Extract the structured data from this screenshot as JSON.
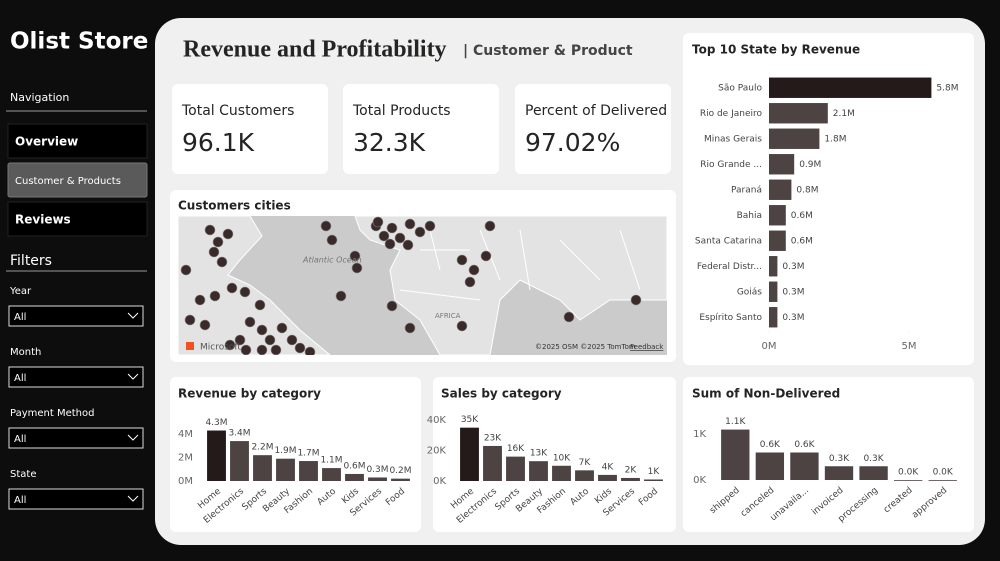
{
  "sidebar": {
    "title": "Olist Store",
    "navigation": "Navigation",
    "buttons": [
      "Overview",
      "Customer & Products",
      "Reviews"
    ],
    "filters_title": "Filters",
    "filters": [
      {
        "label": "Year",
        "value": "All"
      },
      {
        "label": "Month",
        "value": "All"
      },
      {
        "label": "Payment Method",
        "value": "All"
      },
      {
        "label": "State",
        "value": "All"
      }
    ]
  },
  "header": {
    "title": "Revenue and Profitability",
    "subtitle": "| Customer & Product"
  },
  "kpis": [
    {
      "label": "Total Customers",
      "value": "96.1K"
    },
    {
      "label": "Total Products",
      "value": "32.3K"
    },
    {
      "label": "Percent of Delivered",
      "value": "97.02%"
    }
  ],
  "map": {
    "title": "Customers cities",
    "ocean_label": "Atlantic Ocean",
    "continent_label": "AFRICA",
    "attribution": "©2025 OSM ©2025 TomTom",
    "feedback": "Feedback",
    "logo": "Microsoft"
  },
  "chart_data": [
    {
      "type": "barh",
      "title": "Top 10 State by Revenue",
      "categories": [
        "São Paulo",
        "Rio de Janeiro",
        "Minas Gerais",
        "Rio Grande ...",
        "Paraná",
        "Bahia",
        "Santa Catarina",
        "Federal Distr...",
        "Goiás",
        "Espírito Santo"
      ],
      "values": [
        5.8,
        2.1,
        1.8,
        0.9,
        0.8,
        0.6,
        0.6,
        0.3,
        0.3,
        0.3
      ],
      "value_labels": [
        "5.8M",
        "2.1M",
        "1.8M",
        "0.9M",
        "0.8M",
        "0.6M",
        "0.6M",
        "0.3M",
        "0.3M",
        "0.3M"
      ],
      "colors": [
        "#241a1a",
        "#4d4343",
        "#4d4343",
        "#4d4343",
        "#4d4343",
        "#4d4343",
        "#4d4343",
        "#4d4343",
        "#4d4343",
        "#4d4343"
      ],
      "xlim": [
        0,
        6
      ],
      "xticks": [
        {
          "value": 0,
          "label": "0M"
        },
        {
          "value": 5,
          "label": "5M"
        }
      ]
    },
    {
      "type": "bar",
      "title": "Revenue by category",
      "categories": [
        "Home",
        "Electronics",
        "Sports",
        "Beauty",
        "Fashion",
        "Auto",
        "Kids",
        "Services",
        "Food"
      ],
      "values": [
        4.3,
        3.4,
        2.2,
        1.9,
        1.7,
        1.1,
        0.6,
        0.3,
        0.2
      ],
      "value_labels": [
        "4.3M",
        "3.4M",
        "2.2M",
        "1.9M",
        "1.7M",
        "1.1M",
        "0.6M",
        "0.3M",
        "0.2M"
      ],
      "colors": [
        "#241a1a",
        "#4d4343",
        "#4d4343",
        "#4d4343",
        "#4d4343",
        "#4d4343",
        "#4d4343",
        "#4d4343",
        "#4d4343"
      ],
      "ylim": [
        0,
        4.6
      ],
      "yticks": [
        {
          "value": 0,
          "label": "0M"
        },
        {
          "value": 2,
          "label": "2M"
        },
        {
          "value": 4,
          "label": "4M"
        }
      ]
    },
    {
      "type": "bar",
      "title": "Sales by category",
      "categories": [
        "Home",
        "Electronics",
        "Sports",
        "Beauty",
        "Fashion",
        "Auto",
        "Kids",
        "Services",
        "Food"
      ],
      "values": [
        35,
        23,
        16,
        13,
        10,
        7,
        4,
        2,
        1
      ],
      "value_labels": [
        "35K",
        "23K",
        "16K",
        "13K",
        "10K",
        "7K",
        "4K",
        "2K",
        "1K"
      ],
      "colors": [
        "#241a1a",
        "#4d4343",
        "#4d4343",
        "#4d4343",
        "#4d4343",
        "#4d4343",
        "#4d4343",
        "#4d4343",
        "#4d4343"
      ],
      "ylim": [
        0,
        42
      ],
      "yticks": [
        {
          "value": 0,
          "label": "0K"
        },
        {
          "value": 20,
          "label": "20K"
        },
        {
          "value": 40,
          "label": "40K"
        }
      ]
    },
    {
      "type": "bar",
      "title": "Sum of Non-Delivered",
      "categories": [
        "shipped",
        "canceled",
        "unavaila...",
        "invoiced",
        "processing",
        "created",
        "approved"
      ],
      "values": [
        1.1,
        0.6,
        0.6,
        0.3,
        0.3,
        0,
        0
      ],
      "value_labels": [
        "1.1K",
        "0.6K",
        "0.6K",
        "0.3K",
        "0.3K",
        "0.0K",
        "0.0K"
      ],
      "colors": [
        "#4d4343",
        "#4d4343",
        "#4d4343",
        "#4d4343",
        "#4d4343",
        "#4d4343",
        "#4d4343"
      ],
      "ylim": [
        0,
        1.2
      ],
      "yticks": [
        {
          "value": 0,
          "label": "0K"
        },
        {
          "value": 1,
          "label": "1K"
        }
      ]
    }
  ]
}
